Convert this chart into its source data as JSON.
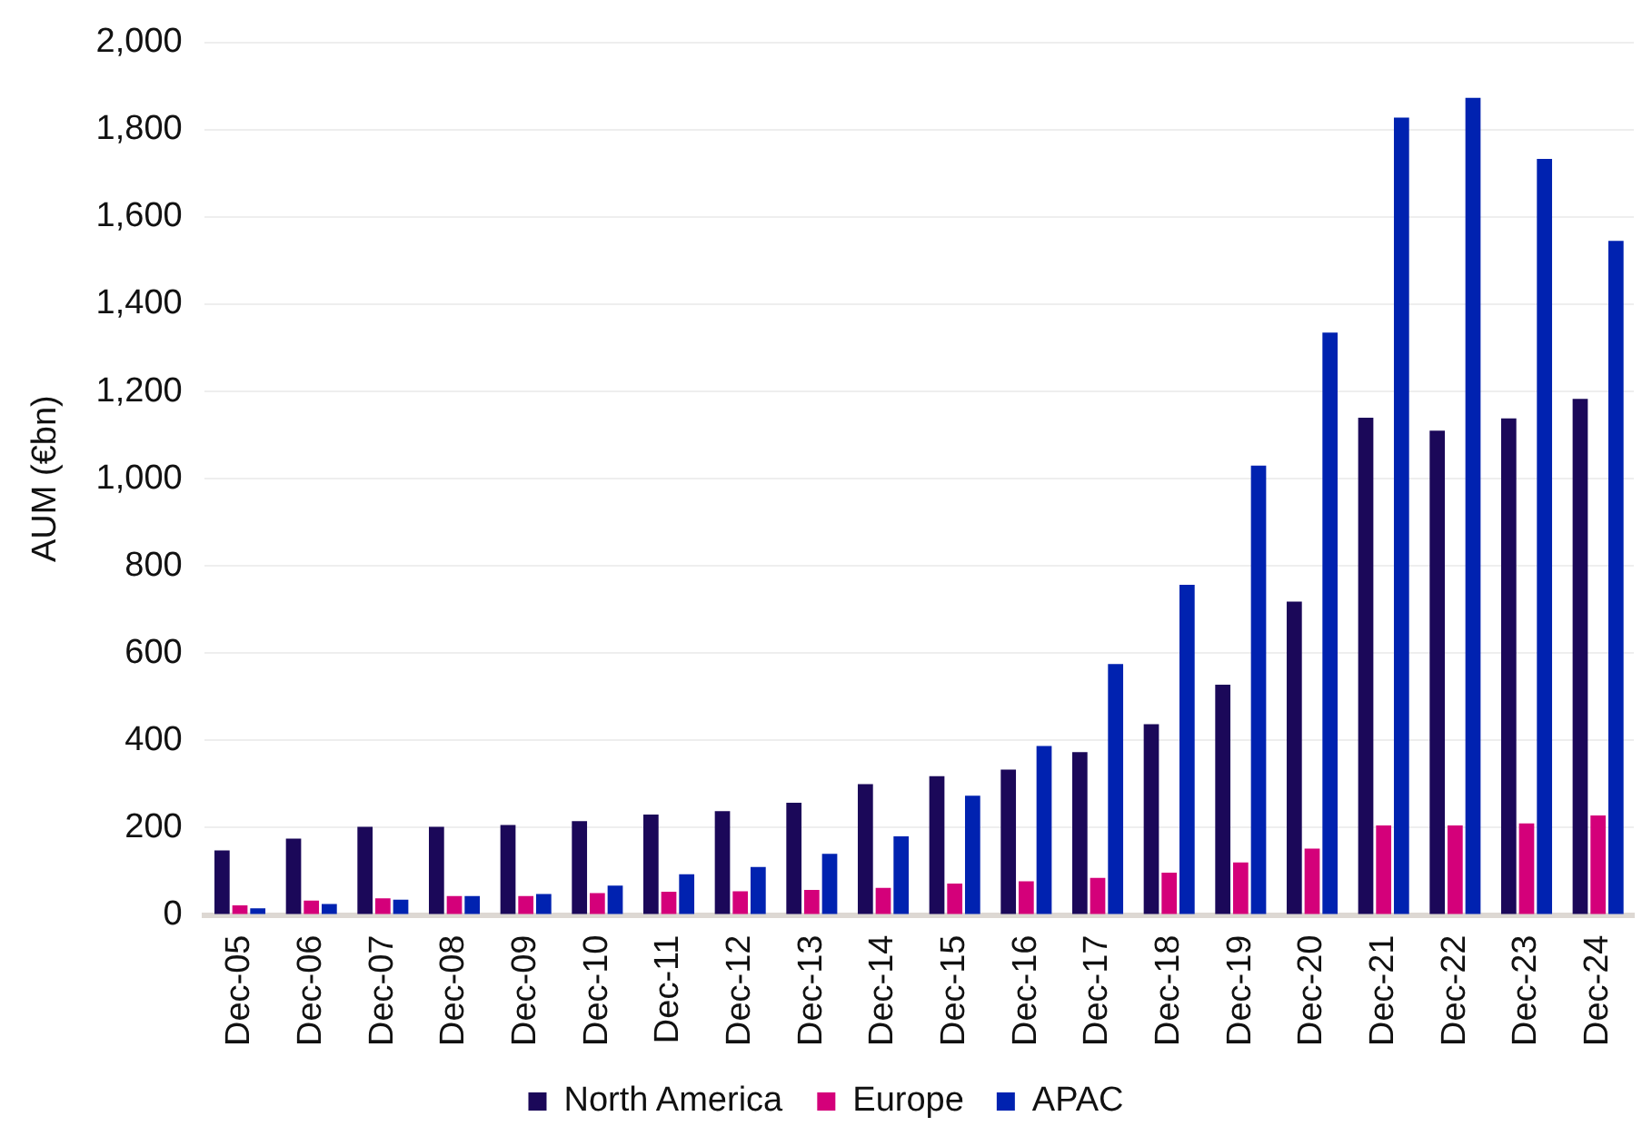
{
  "chart_data": {
    "type": "bar",
    "ylabel": "AUM (€bn)",
    "categories": [
      "Dec-05",
      "Dec-06",
      "Dec-07",
      "Dec-08",
      "Dec-09",
      "Dec-10",
      "Dec-11",
      "Dec-12",
      "Dec-13",
      "Dec-14",
      "Dec-15",
      "Dec-16",
      "Dec-17",
      "Dec-18",
      "Dec-19",
      "Dec-20",
      "Dec-21",
      "Dec-22",
      "Dec-23",
      "Dec-24"
    ],
    "series": [
      {
        "name": "North America",
        "color": "#1b0859",
        "values": [
          148,
          175,
          202,
          202,
          206,
          215,
          230,
          238,
          257,
          300,
          318,
          333,
          373,
          437,
          528,
          718,
          1140,
          1110,
          1138,
          1183
        ]
      },
      {
        "name": "Europe",
        "color": "#d4007a",
        "values": [
          22,
          33,
          38,
          43,
          43,
          50,
          53,
          54,
          57,
          62,
          72,
          77,
          85,
          97,
          120,
          152,
          205,
          205,
          210,
          228
        ]
      },
      {
        "name": "APAC",
        "color": "#0022b0",
        "values": [
          15,
          25,
          35,
          43,
          48,
          67,
          93,
          110,
          140,
          180,
          273,
          387,
          575,
          757,
          1030,
          1335,
          1828,
          1873,
          1733,
          1545
        ]
      }
    ],
    "ylim": [
      0,
      2000
    ],
    "yticks": [
      0,
      200,
      400,
      600,
      800,
      {
        "value": 1000,
        "label": "1,000"
      },
      {
        "value": 1200,
        "label": "1,200"
      },
      {
        "value": 1400,
        "label": "1,400"
      },
      {
        "value": 1600,
        "label": "1,600"
      },
      {
        "value": 1800,
        "label": "1,800"
      },
      {
        "value": 2000,
        "label": "2,000"
      }
    ],
    "grid": "y",
    "legend": "bottom"
  }
}
